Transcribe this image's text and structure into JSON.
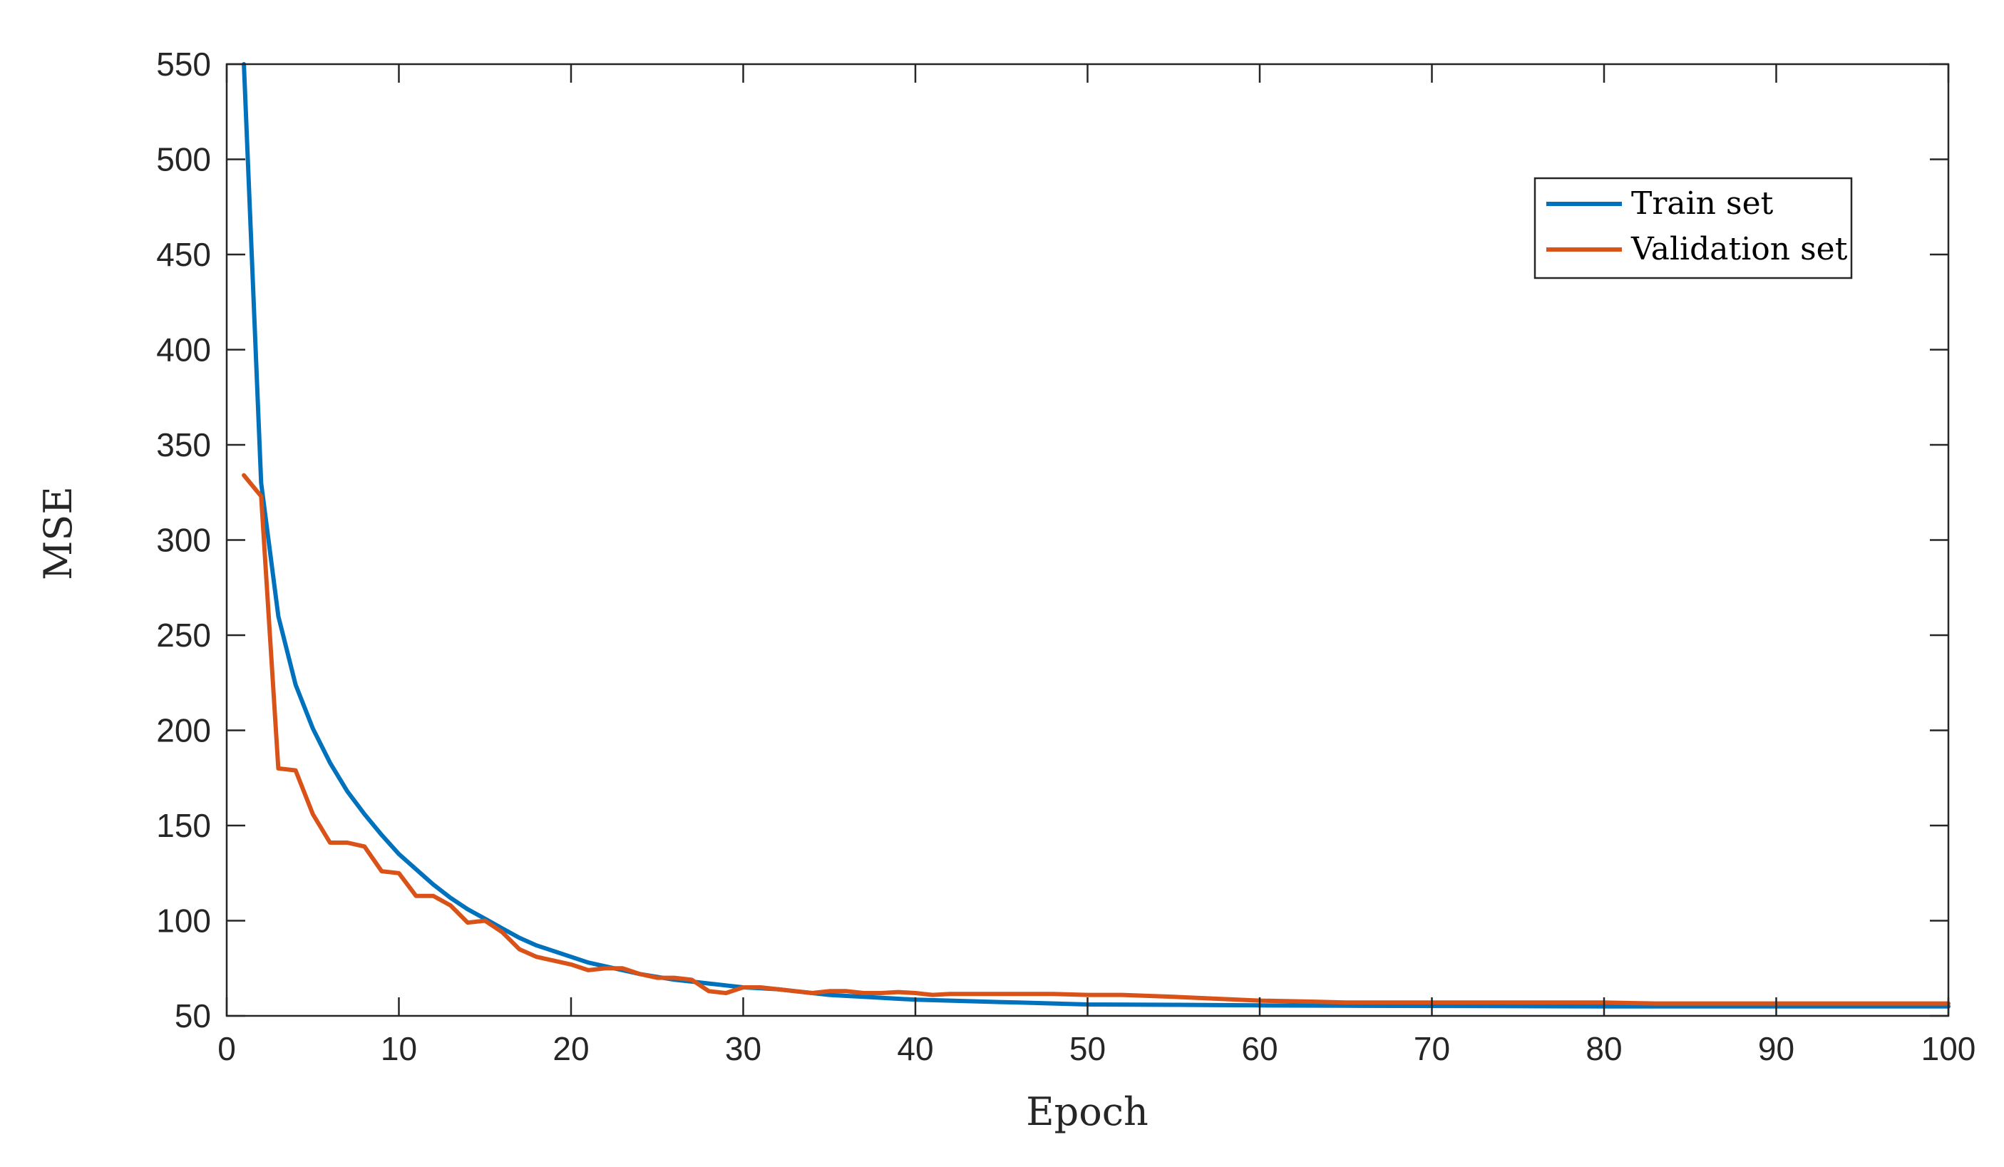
{
  "chart_data": {
    "type": "line",
    "title": "",
    "xlabel": "Epoch",
    "ylabel": "MSE",
    "xlim": [
      0,
      100
    ],
    "ylim": [
      50,
      550
    ],
    "xticks": [
      0,
      10,
      20,
      30,
      40,
      50,
      60,
      70,
      80,
      90,
      100
    ],
    "yticks": [
      50,
      100,
      150,
      200,
      250,
      300,
      350,
      400,
      450,
      500,
      550
    ],
    "grid": false,
    "legend_position": "top-right",
    "series": [
      {
        "name": "Train set",
        "color": "#0072BD",
        "x": [
          1,
          2,
          3,
          4,
          5,
          6,
          7,
          8,
          9,
          10,
          11,
          12,
          13,
          14,
          15,
          16,
          17,
          18,
          19,
          20,
          21,
          22,
          23,
          24,
          25,
          26,
          27,
          28,
          29,
          30,
          31,
          32,
          33,
          34,
          35,
          36,
          37,
          38,
          39,
          40,
          42,
          44,
          46,
          48,
          50,
          55,
          60,
          65,
          70,
          75,
          80,
          85,
          90,
          95,
          100
        ],
        "values": [
          550,
          330,
          260,
          224,
          201,
          183,
          168,
          156,
          145,
          135,
          127,
          119,
          112,
          106,
          101,
          96,
          91,
          87,
          84,
          81,
          78,
          76,
          74,
          72,
          70.5,
          69,
          68,
          67,
          66,
          65,
          64.5,
          64,
          63,
          62,
          61,
          60.5,
          60,
          59.5,
          59,
          58.5,
          58,
          57.5,
          57,
          56.5,
          56,
          55.8,
          55.5,
          55.3,
          55.2,
          55.1,
          55,
          55,
          55,
          55,
          55
        ]
      },
      {
        "name": "Validation set",
        "color": "#D95319",
        "x": [
          1,
          2,
          3,
          4,
          5,
          6,
          7,
          8,
          9,
          10,
          11,
          12,
          13,
          14,
          15,
          16,
          17,
          18,
          19,
          20,
          21,
          22,
          23,
          24,
          25,
          26,
          27,
          28,
          29,
          30,
          31,
          32,
          33,
          34,
          35,
          36,
          37,
          38,
          39,
          40,
          41,
          42,
          44,
          46,
          48,
          50,
          52,
          55,
          60,
          63,
          65,
          70,
          75,
          80,
          83,
          85,
          90,
          95,
          100
        ],
        "values": [
          334,
          323,
          180,
          179,
          156,
          141,
          141,
          139,
          126,
          125,
          113,
          113,
          108,
          99,
          100,
          94,
          85,
          81,
          79,
          77,
          74,
          75,
          75,
          72,
          70,
          70,
          69,
          63,
          62,
          65,
          65,
          64,
          63,
          62,
          63,
          63,
          62,
          62,
          62.5,
          62,
          61,
          61.5,
          61.5,
          61.5,
          61.5,
          61,
          61,
          60,
          58,
          57.5,
          57,
          57,
          57,
          57,
          56.5,
          56.5,
          56.5,
          56.5,
          56.5
        ]
      }
    ]
  }
}
